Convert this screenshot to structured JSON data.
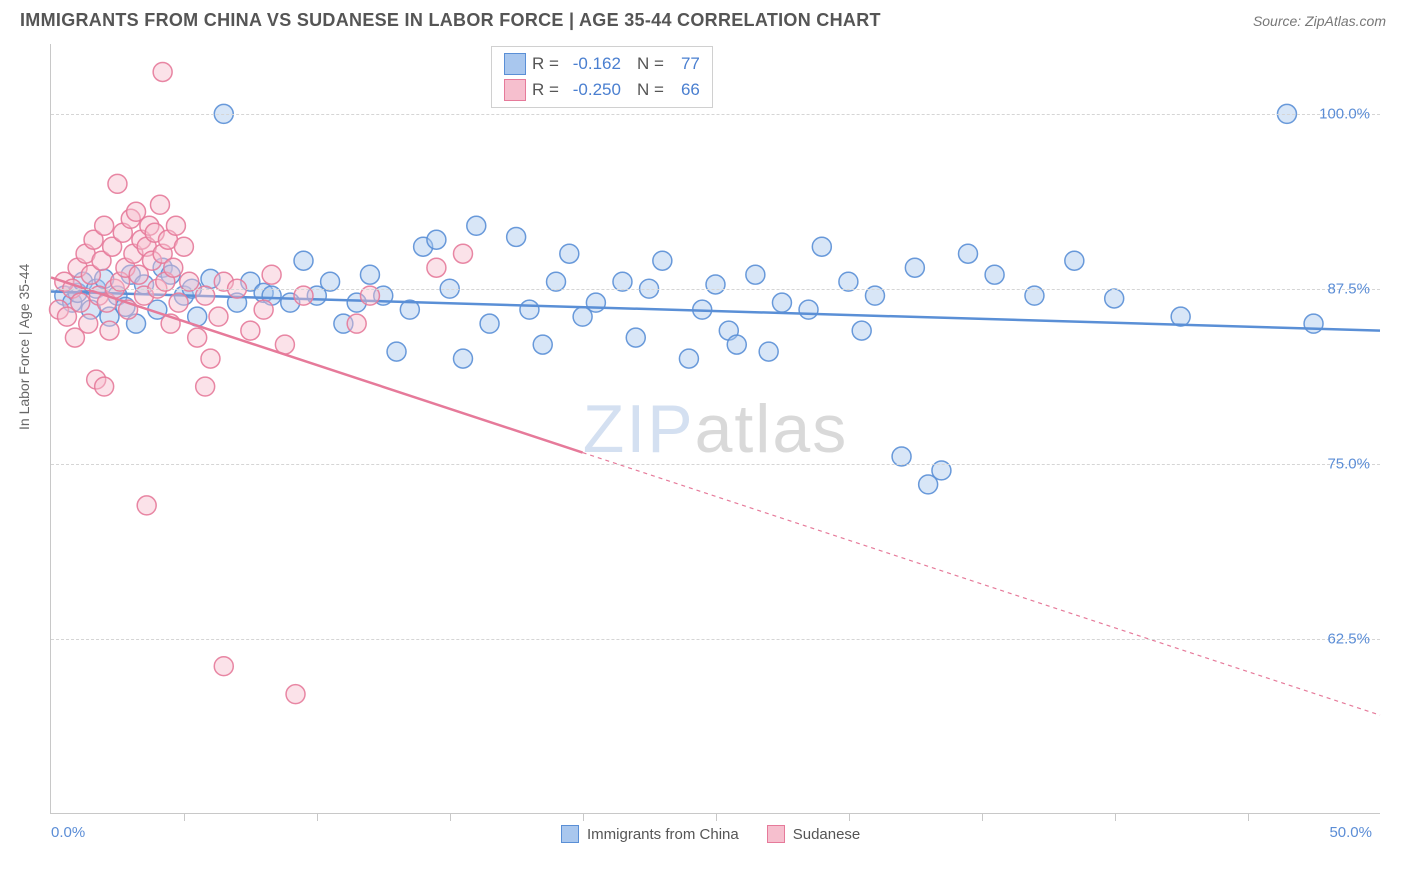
{
  "title": "IMMIGRANTS FROM CHINA VS SUDANESE IN LABOR FORCE | AGE 35-44 CORRELATION CHART",
  "source": "Source: ZipAtlas.com",
  "y_axis_label": "In Labor Force | Age 35-44",
  "watermark": {
    "part1": "ZIP",
    "part2": "atlas"
  },
  "chart": {
    "type": "scatter-with-trend",
    "background_color": "#ffffff",
    "grid_color": "#d5d5d5",
    "axis_color": "#c8c8c8",
    "tick_label_color": "#5b8dd6",
    "label_color": "#666666",
    "title_color": "#555555",
    "marker_radius": 9.5,
    "marker_opacity": 0.45,
    "marker_stroke_opacity": 0.9,
    "trend_line_width": 2.5,
    "xlim": [
      0,
      50
    ],
    "ylim": [
      50,
      105
    ],
    "y_ticks": [
      62.5,
      75.0,
      87.5,
      100.0
    ],
    "y_tick_labels": [
      "62.5%",
      "75.0%",
      "87.5%",
      "100.0%"
    ],
    "x_ticks_minor": [
      5,
      10,
      15,
      20,
      25,
      30,
      35,
      40,
      45
    ],
    "x_tick_labels": {
      "0": "0.0%",
      "50": "50.0%"
    }
  },
  "legend_top": {
    "r_label": "R =",
    "n_label": "N =",
    "rows": [
      {
        "swatch_fill": "#a9c7ee",
        "swatch_border": "#5a8fd6",
        "r": "-0.162",
        "n": "77"
      },
      {
        "swatch_fill": "#f6bfce",
        "swatch_border": "#e67a9a",
        "r": "-0.250",
        "n": "66"
      }
    ]
  },
  "legend_bottom": {
    "items": [
      {
        "swatch_fill": "#a9c7ee",
        "swatch_border": "#5a8fd6",
        "label": "Immigrants from China"
      },
      {
        "swatch_fill": "#f6bfce",
        "swatch_border": "#e67a9a",
        "label": "Sudanese"
      }
    ]
  },
  "series": [
    {
      "name": "Immigrants from China",
      "fill": "#a9c7ee",
      "stroke": "#5a8fd6",
      "trend": {
        "x1": 0,
        "y1": 87.3,
        "x2": 50,
        "y2": 84.5,
        "dash": "none"
      },
      "points": [
        [
          0.5,
          87.0
        ],
        [
          0.8,
          86.5
        ],
        [
          1.0,
          87.2
        ],
        [
          1.2,
          88.0
        ],
        [
          1.5,
          86.0
        ],
        [
          1.7,
          87.5
        ],
        [
          2.0,
          88.2
        ],
        [
          2.2,
          85.5
        ],
        [
          2.5,
          87.0
        ],
        [
          2.8,
          86.2
        ],
        [
          3.0,
          88.5
        ],
        [
          3.2,
          85.0
        ],
        [
          3.5,
          87.8
        ],
        [
          4.0,
          86.0
        ],
        [
          4.2,
          89.0
        ],
        [
          4.5,
          88.5
        ],
        [
          5.0,
          87.0
        ],
        [
          5.3,
          87.5
        ],
        [
          5.5,
          85.5
        ],
        [
          6.0,
          88.2
        ],
        [
          6.5,
          100.0
        ],
        [
          7.0,
          86.5
        ],
        [
          7.5,
          88.0
        ],
        [
          8.0,
          87.2
        ],
        [
          8.3,
          87.0
        ],
        [
          9.0,
          86.5
        ],
        [
          9.5,
          89.5
        ],
        [
          10.0,
          87.0
        ],
        [
          10.5,
          88.0
        ],
        [
          11.0,
          85.0
        ],
        [
          11.5,
          86.5
        ],
        [
          12.0,
          88.5
        ],
        [
          12.5,
          87.0
        ],
        [
          13.0,
          83.0
        ],
        [
          13.5,
          86.0
        ],
        [
          14.0,
          90.5
        ],
        [
          14.5,
          91.0
        ],
        [
          15.0,
          87.5
        ],
        [
          15.5,
          82.5
        ],
        [
          16.0,
          92.0
        ],
        [
          16.5,
          85.0
        ],
        [
          17.5,
          91.2
        ],
        [
          18.0,
          86.0
        ],
        [
          18.5,
          83.5
        ],
        [
          19.0,
          88.0
        ],
        [
          19.5,
          90.0
        ],
        [
          20.0,
          85.5
        ],
        [
          20.5,
          86.5
        ],
        [
          21.5,
          88.0
        ],
        [
          22.0,
          84.0
        ],
        [
          22.5,
          87.5
        ],
        [
          23.0,
          89.5
        ],
        [
          24.0,
          82.5
        ],
        [
          24.5,
          86.0
        ],
        [
          25.0,
          87.8
        ],
        [
          25.5,
          84.5
        ],
        [
          25.8,
          83.5
        ],
        [
          26.5,
          88.5
        ],
        [
          27.0,
          83.0
        ],
        [
          27.5,
          86.5
        ],
        [
          28.5,
          86.0
        ],
        [
          29.0,
          90.5
        ],
        [
          30.0,
          88.0
        ],
        [
          30.5,
          84.5
        ],
        [
          31.0,
          87.0
        ],
        [
          32.0,
          75.5
        ],
        [
          32.5,
          89.0
        ],
        [
          33.0,
          73.5
        ],
        [
          33.5,
          74.5
        ],
        [
          34.5,
          90.0
        ],
        [
          35.5,
          88.5
        ],
        [
          37.0,
          87.0
        ],
        [
          38.5,
          89.5
        ],
        [
          40.0,
          86.8
        ],
        [
          42.5,
          85.5
        ],
        [
          46.5,
          100.0
        ],
        [
          47.5,
          85.0
        ]
      ]
    },
    {
      "name": "Sudanese",
      "fill": "#f6bfce",
      "stroke": "#e67a9a",
      "trend": {
        "x1": 0,
        "y1": 88.3,
        "x2": 50,
        "y2": 57.0,
        "dash": "4 4",
        "solid_until_x": 20
      },
      "points": [
        [
          0.3,
          86.0
        ],
        [
          0.5,
          88.0
        ],
        [
          0.6,
          85.5
        ],
        [
          0.8,
          87.5
        ],
        [
          0.9,
          84.0
        ],
        [
          1.0,
          89.0
        ],
        [
          1.1,
          86.5
        ],
        [
          1.3,
          90.0
        ],
        [
          1.4,
          85.0
        ],
        [
          1.5,
          88.5
        ],
        [
          1.6,
          91.0
        ],
        [
          1.8,
          87.0
        ],
        [
          1.9,
          89.5
        ],
        [
          2.0,
          92.0
        ],
        [
          2.1,
          86.5
        ],
        [
          2.2,
          84.5
        ],
        [
          2.3,
          90.5
        ],
        [
          2.4,
          87.5
        ],
        [
          2.5,
          95.0
        ],
        [
          2.6,
          88.0
        ],
        [
          2.7,
          91.5
        ],
        [
          2.8,
          89.0
        ],
        [
          2.9,
          86.0
        ],
        [
          3.0,
          92.5
        ],
        [
          3.1,
          90.0
        ],
        [
          3.2,
          93.0
        ],
        [
          3.3,
          88.5
        ],
        [
          3.4,
          91.0
        ],
        [
          3.5,
          87.0
        ],
        [
          3.6,
          90.5
        ],
        [
          3.7,
          92.0
        ],
        [
          3.8,
          89.5
        ],
        [
          3.9,
          91.5
        ],
        [
          4.0,
          87.5
        ],
        [
          4.1,
          93.5
        ],
        [
          4.2,
          90.0
        ],
        [
          4.3,
          88.0
        ],
        [
          4.4,
          91.0
        ],
        [
          4.5,
          85.0
        ],
        [
          4.6,
          89.0
        ],
        [
          4.7,
          92.0
        ],
        [
          4.8,
          86.5
        ],
        [
          5.0,
          90.5
        ],
        [
          5.2,
          88.0
        ],
        [
          5.5,
          84.0
        ],
        [
          5.8,
          87.0
        ],
        [
          6.0,
          82.5
        ],
        [
          6.3,
          85.5
        ],
        [
          6.5,
          88.0
        ],
        [
          4.2,
          103.0
        ],
        [
          1.7,
          81.0
        ],
        [
          2.0,
          80.5
        ],
        [
          3.6,
          72.0
        ],
        [
          5.8,
          80.5
        ],
        [
          6.5,
          60.5
        ],
        [
          7.0,
          87.5
        ],
        [
          7.5,
          84.5
        ],
        [
          8.0,
          86.0
        ],
        [
          8.3,
          88.5
        ],
        [
          8.8,
          83.5
        ],
        [
          9.2,
          58.5
        ],
        [
          9.5,
          87.0
        ],
        [
          14.5,
          89.0
        ],
        [
          15.5,
          90.0
        ],
        [
          11.5,
          85.0
        ],
        [
          12.0,
          87.0
        ]
      ]
    }
  ]
}
